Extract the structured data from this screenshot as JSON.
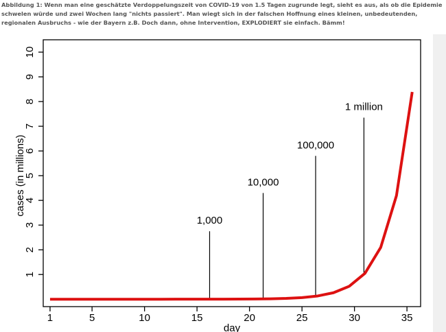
{
  "caption": "Abbildung 1: Wenn man eine geschätzte Verdoppelungszeit von COVID-19 von 1.5 Tagen zugrunde legt, sieht es aus, als ob die Epidemie schwelen würde und zwei Wochen lang \"nichts passiert\". Man wiegt sich in der falschen Hoffnung eines kleinen, unbedeutenden, regionalen Ausbruchs - wie der Bayern z.B. Doch dann, ohne Intervention, EXPLODIERT sie einfach. Bämm!",
  "chart_data": {
    "type": "line",
    "xlabel": "day",
    "ylabel": "cases (in millions)",
    "x": [
      1,
      2.5,
      4,
      5.5,
      7,
      8.5,
      10,
      11.5,
      13,
      14.5,
      16,
      17.5,
      19,
      20.5,
      22,
      23.5,
      25,
      26.5,
      28,
      29.5,
      31,
      32.5,
      34,
      35.5
    ],
    "series": [
      {
        "name": "cases",
        "color": "#dd1111",
        "values": [
          1e-06,
          2e-06,
          4e-06,
          8e-06,
          1.6e-05,
          3.2e-05,
          6.4e-05,
          0.000128,
          0.000256,
          0.000512,
          0.001024,
          0.002048,
          0.004096,
          0.008192,
          0.016384,
          0.032768,
          0.065536,
          0.131072,
          0.262144,
          0.524288,
          1.048576,
          2.097152,
          4.194304,
          8.388608
        ]
      }
    ],
    "xlim": [
      0.35,
      36.3
    ],
    "xticks": [
      1,
      5,
      10,
      15,
      20,
      25,
      30,
      35
    ],
    "ylim": [
      -0.3,
      10.5
    ],
    "yticks": [
      1,
      2,
      3,
      4,
      5,
      6,
      7,
      8,
      9,
      10
    ],
    "annotations": [
      {
        "label": "1,000",
        "x": 16.2,
        "y": 0.001,
        "y_top": 2.75
      },
      {
        "label": "10,000",
        "x": 21.3,
        "y": 0.01,
        "y_top": 4.3
      },
      {
        "label": "100,000",
        "x": 26.3,
        "y": 0.1,
        "y_top": 5.8
      },
      {
        "label": "1 million",
        "x": 30.9,
        "y": 1,
        "y_top": 7.35
      }
    ]
  }
}
